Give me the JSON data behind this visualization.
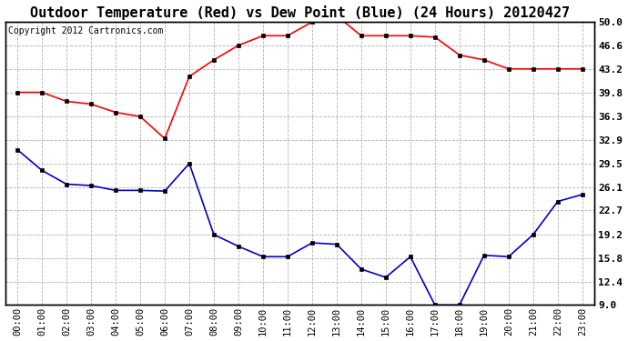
{
  "title": "Outdoor Temperature (Red) vs Dew Point (Blue) (24 Hours) 20120427",
  "copyright": "Copyright 2012 Cartronics.com",
  "hours": [
    "00:00",
    "01:00",
    "02:00",
    "03:00",
    "04:00",
    "05:00",
    "06:00",
    "07:00",
    "08:00",
    "09:00",
    "10:00",
    "11:00",
    "12:00",
    "13:00",
    "14:00",
    "15:00",
    "16:00",
    "17:00",
    "18:00",
    "19:00",
    "20:00",
    "21:00",
    "22:00",
    "23:00"
  ],
  "temp_red": [
    39.8,
    39.8,
    38.5,
    38.1,
    36.9,
    36.3,
    33.1,
    42.1,
    44.5,
    46.6,
    48.0,
    48.0,
    50.0,
    50.9,
    48.0,
    48.0,
    48.0,
    47.8,
    45.2,
    44.5,
    43.2,
    43.2,
    43.2,
    43.2
  ],
  "dew_blue": [
    31.5,
    28.5,
    26.5,
    26.3,
    25.6,
    25.6,
    25.5,
    29.5,
    19.2,
    17.5,
    16.0,
    16.0,
    18.0,
    17.8,
    14.2,
    13.0,
    16.0,
    9.0,
    9.0,
    16.2,
    16.0,
    19.2,
    24.0,
    25.0
  ],
  "yticks_right": [
    9.0,
    12.4,
    15.8,
    19.2,
    22.7,
    26.1,
    29.5,
    32.9,
    36.3,
    39.8,
    43.2,
    46.6,
    50.0
  ],
  "bg_color": "#ffffff",
  "plot_bg_color": "#ffffff",
  "grid_color": "#aaaaaa",
  "red_color": "#ff0000",
  "blue_color": "#0000cc",
  "title_fontsize": 11,
  "copyright_fontsize": 7,
  "tick_label_fontsize": 7.5
}
